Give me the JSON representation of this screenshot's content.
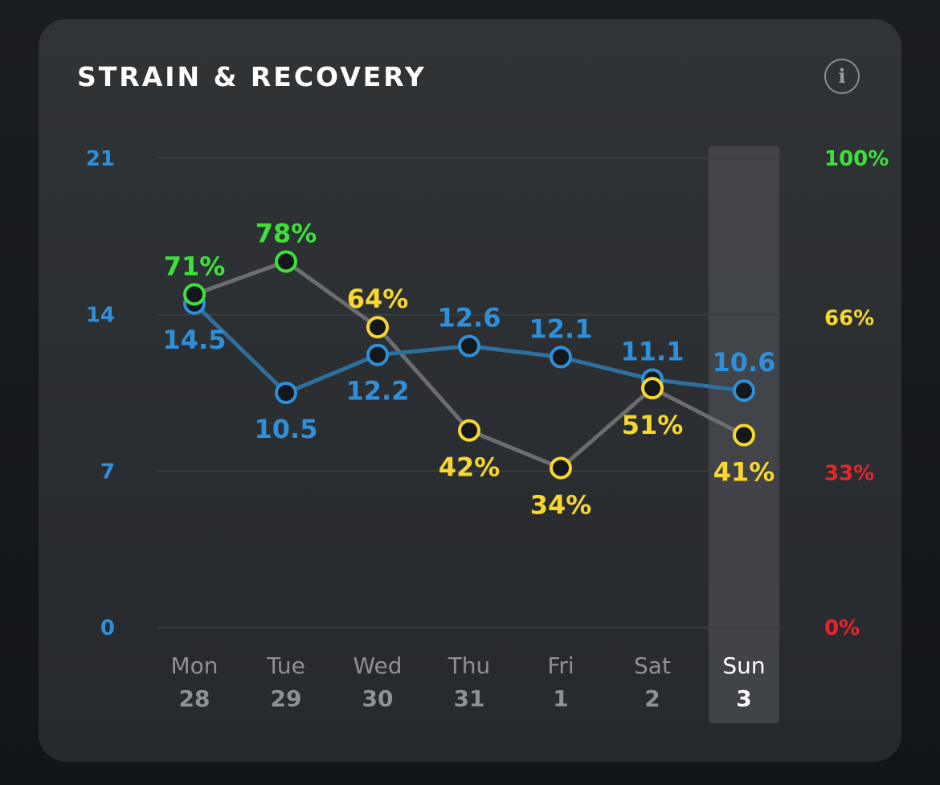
{
  "header": {
    "title": "STRAIN & RECOVERY",
    "info_icon": "info-icon",
    "info_glyph": "i"
  },
  "colors": {
    "strain": "#2f8fd8",
    "strain_line": "#2f6f9e",
    "recovery_line": "#6b6d70",
    "recovery_green": "#3ee13a",
    "recovery_yellow": "#f7d730",
    "recovery_red": "#e8252b",
    "gridline": "#3a3d41",
    "x_label": "#8e9196",
    "x_label_selected": "#ffffff",
    "highlight": "#45484c",
    "point_fill": "#14181d"
  },
  "chart_data": {
    "type": "line",
    "categories": [
      {
        "day": "Mon",
        "date": "28"
      },
      {
        "day": "Tue",
        "date": "29"
      },
      {
        "day": "Wed",
        "date": "30"
      },
      {
        "day": "Thu",
        "date": "31"
      },
      {
        "day": "Fri",
        "date": "1"
      },
      {
        "day": "Sat",
        "date": "2"
      },
      {
        "day": "Sun",
        "date": "3"
      }
    ],
    "selected_index": 6,
    "left_axis": {
      "range": [
        0,
        21
      ],
      "ticks": [
        "21",
        "14",
        "7",
        "0"
      ],
      "tick_values": [
        21,
        14,
        7,
        0
      ]
    },
    "right_axis": {
      "range": [
        0,
        100
      ],
      "ticks": [
        "100%",
        "66%",
        "33%",
        "0%"
      ],
      "tick_values": [
        100,
        66,
        33,
        0
      ],
      "tick_colors": [
        "#3ee13a",
        "#f7d730",
        "#e8252b",
        "#e8252b"
      ]
    },
    "series": [
      {
        "axis": "left",
        "values": [
          14.5,
          10.5,
          12.2,
          12.6,
          12.1,
          11.1,
          10.6
        ],
        "labels": [
          "14.5",
          "10.5",
          "12.2",
          "12.6",
          "12.1",
          "11.1",
          "10.6"
        ],
        "label_position": [
          "below",
          "below",
          "below",
          "above",
          "above",
          "above",
          "above"
        ]
      },
      {
        "axis": "right",
        "values": [
          71,
          78,
          64,
          42,
          34,
          51,
          41
        ],
        "labels": [
          "71%",
          "78%",
          "64%",
          "42%",
          "34%",
          "51%",
          "41%"
        ],
        "label_position": [
          "above",
          "above",
          "above",
          "below",
          "below",
          "below",
          "below"
        ]
      }
    ],
    "grid": true
  }
}
